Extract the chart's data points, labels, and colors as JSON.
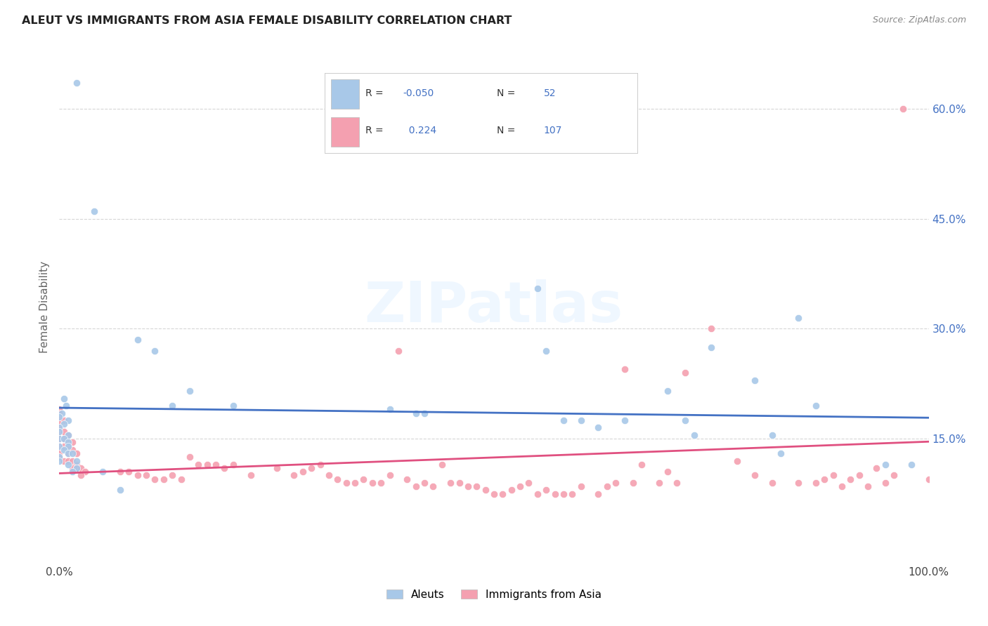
{
  "title": "ALEUT VS IMMIGRANTS FROM ASIA FEMALE DISABILITY CORRELATION CHART",
  "source": "Source: ZipAtlas.com",
  "ylabel": "Female Disability",
  "xmin": 0.0,
  "xmax": 1.0,
  "ymin": -0.02,
  "ymax": 0.68,
  "background_color": "#ffffff",
  "watermark_text": "ZIPatlas",
  "legend_blue_label": "Aleuts",
  "legend_pink_label": "Immigrants from Asia",
  "blue_R": -0.05,
  "blue_N": 52,
  "pink_R": 0.224,
  "pink_N": 107,
  "blue_color": "#a8c8e8",
  "pink_color": "#f4a0b0",
  "blue_line_color": "#4472c4",
  "pink_line_color": "#e05080",
  "blue_scatter": [
    [
      0.02,
      0.635
    ],
    [
      0.04,
      0.46
    ],
    [
      0.005,
      0.205
    ],
    [
      0.008,
      0.195
    ],
    [
      0.003,
      0.185
    ],
    [
      0.0,
      0.18
    ],
    [
      0.01,
      0.175
    ],
    [
      0.005,
      0.17
    ],
    [
      0.0,
      0.165
    ],
    [
      0.0,
      0.16
    ],
    [
      0.01,
      0.155
    ],
    [
      0.0,
      0.15
    ],
    [
      0.005,
      0.15
    ],
    [
      0.01,
      0.145
    ],
    [
      0.0,
      0.14
    ],
    [
      0.01,
      0.14
    ],
    [
      0.005,
      0.135
    ],
    [
      0.01,
      0.13
    ],
    [
      0.015,
      0.13
    ],
    [
      0.0,
      0.125
    ],
    [
      0.0,
      0.12
    ],
    [
      0.02,
      0.12
    ],
    [
      0.01,
      0.115
    ],
    [
      0.02,
      0.11
    ],
    [
      0.015,
      0.105
    ],
    [
      0.09,
      0.285
    ],
    [
      0.11,
      0.27
    ],
    [
      0.15,
      0.215
    ],
    [
      0.13,
      0.195
    ],
    [
      0.2,
      0.195
    ],
    [
      0.38,
      0.19
    ],
    [
      0.41,
      0.185
    ],
    [
      0.42,
      0.185
    ],
    [
      0.55,
      0.355
    ],
    [
      0.56,
      0.27
    ],
    [
      0.58,
      0.175
    ],
    [
      0.6,
      0.175
    ],
    [
      0.62,
      0.165
    ],
    [
      0.65,
      0.175
    ],
    [
      0.7,
      0.215
    ],
    [
      0.72,
      0.175
    ],
    [
      0.73,
      0.155
    ],
    [
      0.75,
      0.275
    ],
    [
      0.8,
      0.23
    ],
    [
      0.82,
      0.155
    ],
    [
      0.83,
      0.13
    ],
    [
      0.85,
      0.315
    ],
    [
      0.87,
      0.195
    ],
    [
      0.95,
      0.115
    ],
    [
      0.98,
      0.115
    ],
    [
      0.05,
      0.105
    ],
    [
      0.07,
      0.08
    ]
  ],
  "pink_scatter": [
    [
      0.97,
      0.6
    ],
    [
      0.75,
      0.3
    ],
    [
      0.72,
      0.24
    ],
    [
      0.65,
      0.245
    ],
    [
      0.39,
      0.27
    ],
    [
      0.0,
      0.19
    ],
    [
      0.0,
      0.185
    ],
    [
      0.0,
      0.18
    ],
    [
      0.005,
      0.175
    ],
    [
      0.0,
      0.17
    ],
    [
      0.0,
      0.165
    ],
    [
      0.0,
      0.16
    ],
    [
      0.005,
      0.16
    ],
    [
      0.01,
      0.155
    ],
    [
      0.0,
      0.15
    ],
    [
      0.005,
      0.15
    ],
    [
      0.01,
      0.145
    ],
    [
      0.015,
      0.145
    ],
    [
      0.0,
      0.14
    ],
    [
      0.005,
      0.14
    ],
    [
      0.01,
      0.14
    ],
    [
      0.015,
      0.135
    ],
    [
      0.0,
      0.13
    ],
    [
      0.01,
      0.13
    ],
    [
      0.02,
      0.13
    ],
    [
      0.0,
      0.125
    ],
    [
      0.005,
      0.12
    ],
    [
      0.01,
      0.12
    ],
    [
      0.015,
      0.12
    ],
    [
      0.02,
      0.115
    ],
    [
      0.015,
      0.11
    ],
    [
      0.02,
      0.11
    ],
    [
      0.025,
      0.11
    ],
    [
      0.03,
      0.105
    ],
    [
      0.025,
      0.1
    ],
    [
      0.07,
      0.105
    ],
    [
      0.08,
      0.105
    ],
    [
      0.09,
      0.1
    ],
    [
      0.1,
      0.1
    ],
    [
      0.11,
      0.095
    ],
    [
      0.12,
      0.095
    ],
    [
      0.13,
      0.1
    ],
    [
      0.14,
      0.095
    ],
    [
      0.2,
      0.115
    ],
    [
      0.22,
      0.1
    ],
    [
      0.25,
      0.11
    ],
    [
      0.27,
      0.1
    ],
    [
      0.3,
      0.115
    ],
    [
      0.33,
      0.09
    ],
    [
      0.35,
      0.095
    ],
    [
      0.38,
      0.1
    ],
    [
      0.4,
      0.095
    ],
    [
      0.42,
      0.09
    ],
    [
      0.43,
      0.085
    ],
    [
      0.44,
      0.115
    ],
    [
      0.45,
      0.09
    ],
    [
      0.46,
      0.09
    ],
    [
      0.47,
      0.085
    ],
    [
      0.48,
      0.085
    ],
    [
      0.49,
      0.08
    ],
    [
      0.5,
      0.075
    ],
    [
      0.51,
      0.075
    ],
    [
      0.52,
      0.08
    ],
    [
      0.53,
      0.085
    ],
    [
      0.54,
      0.09
    ],
    [
      0.55,
      0.075
    ],
    [
      0.56,
      0.08
    ],
    [
      0.57,
      0.075
    ],
    [
      0.58,
      0.075
    ],
    [
      0.59,
      0.075
    ],
    [
      0.6,
      0.085
    ],
    [
      0.62,
      0.075
    ],
    [
      0.63,
      0.085
    ],
    [
      0.67,
      0.115
    ],
    [
      0.7,
      0.105
    ],
    [
      0.78,
      0.12
    ],
    [
      0.8,
      0.1
    ],
    [
      0.82,
      0.09
    ],
    [
      0.85,
      0.09
    ],
    [
      0.87,
      0.09
    ],
    [
      0.88,
      0.095
    ],
    [
      0.89,
      0.1
    ],
    [
      0.9,
      0.085
    ],
    [
      0.91,
      0.095
    ],
    [
      0.92,
      0.1
    ],
    [
      0.93,
      0.085
    ],
    [
      0.94,
      0.11
    ],
    [
      0.95,
      0.09
    ],
    [
      0.96,
      0.1
    ],
    [
      1.0,
      0.095
    ],
    [
      0.15,
      0.125
    ],
    [
      0.16,
      0.115
    ],
    [
      0.17,
      0.115
    ],
    [
      0.18,
      0.115
    ],
    [
      0.19,
      0.11
    ],
    [
      0.28,
      0.105
    ],
    [
      0.29,
      0.11
    ],
    [
      0.31,
      0.1
    ],
    [
      0.32,
      0.095
    ],
    [
      0.34,
      0.09
    ],
    [
      0.36,
      0.09
    ],
    [
      0.37,
      0.09
    ],
    [
      0.41,
      0.085
    ],
    [
      0.64,
      0.09
    ],
    [
      0.66,
      0.09
    ],
    [
      0.69,
      0.09
    ],
    [
      0.71,
      0.09
    ]
  ],
  "ytick_vals": [
    0.15,
    0.3,
    0.45,
    0.6
  ],
  "ytick_labels": [
    "15.0%",
    "30.0%",
    "45.0%",
    "60.0%"
  ],
  "grid_color": "#cccccc",
  "tick_color": "#aaaaaa"
}
